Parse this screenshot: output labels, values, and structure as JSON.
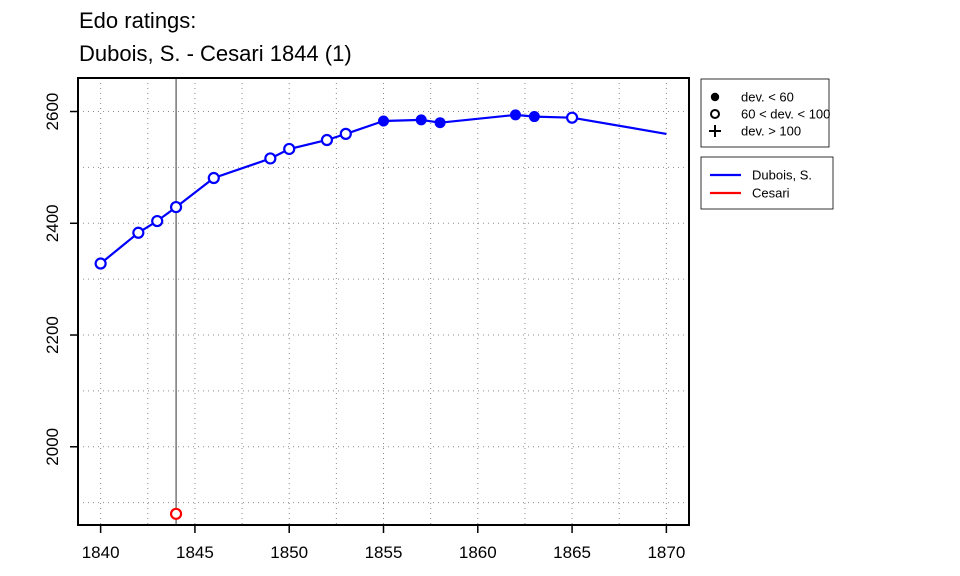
{
  "chart_data": {
    "type": "line",
    "title": [
      "Edo ratings:",
      "Dubois, S. - Cesari 1844 (1)"
    ],
    "xlabel": "",
    "ylabel": "",
    "xlim": [
      1838.8,
      1871.2
    ],
    "ylim": [
      1860,
      2660
    ],
    "xticks": [
      1840,
      1845,
      1850,
      1855,
      1860,
      1865,
      1870
    ],
    "yticks": [
      2000,
      2200,
      2400,
      2600
    ],
    "grid": true,
    "marker_vline_x": 1844,
    "series": [
      {
        "name": "Dubois, S.",
        "color": "#0000ff",
        "line_x": [
          1840,
          1842,
          1843,
          1844,
          1846,
          1849,
          1850,
          1852,
          1853,
          1855,
          1857,
          1858,
          1862,
          1863,
          1865,
          1870
        ],
        "line_y": [
          2328,
          2383,
          2404,
          2429,
          2481,
          2516,
          2533,
          2549,
          2560,
          2583,
          2585,
          2580,
          2594,
          2591,
          2589,
          2560
        ],
        "points": [
          {
            "x": 1840,
            "y": 2328,
            "dev": "mid"
          },
          {
            "x": 1842,
            "y": 2383,
            "dev": "mid"
          },
          {
            "x": 1843,
            "y": 2404,
            "dev": "mid"
          },
          {
            "x": 1844,
            "y": 2429,
            "dev": "mid"
          },
          {
            "x": 1846,
            "y": 2481,
            "dev": "mid"
          },
          {
            "x": 1849,
            "y": 2516,
            "dev": "mid"
          },
          {
            "x": 1850,
            "y": 2533,
            "dev": "mid"
          },
          {
            "x": 1852,
            "y": 2549,
            "dev": "mid"
          },
          {
            "x": 1853,
            "y": 2560,
            "dev": "mid"
          },
          {
            "x": 1855,
            "y": 2583,
            "dev": "low"
          },
          {
            "x": 1857,
            "y": 2585,
            "dev": "low"
          },
          {
            "x": 1858,
            "y": 2580,
            "dev": "low"
          },
          {
            "x": 1862,
            "y": 2594,
            "dev": "low"
          },
          {
            "x": 1863,
            "y": 2591,
            "dev": "low"
          },
          {
            "x": 1865,
            "y": 2589,
            "dev": "mid"
          }
        ]
      },
      {
        "name": "Cesari",
        "color": "#ff0000",
        "line_x": [],
        "line_y": [],
        "points": [
          {
            "x": 1844,
            "y": 1880,
            "dev": "mid"
          }
        ]
      }
    ],
    "deviation_legend": [
      {
        "symbol": "filled-circle",
        "label": "dev. < 60"
      },
      {
        "symbol": "open-circle",
        "label": "60 < dev. < 100"
      },
      {
        "symbol": "plus",
        "label": "dev. > 100"
      }
    ],
    "legend_position": "right"
  }
}
